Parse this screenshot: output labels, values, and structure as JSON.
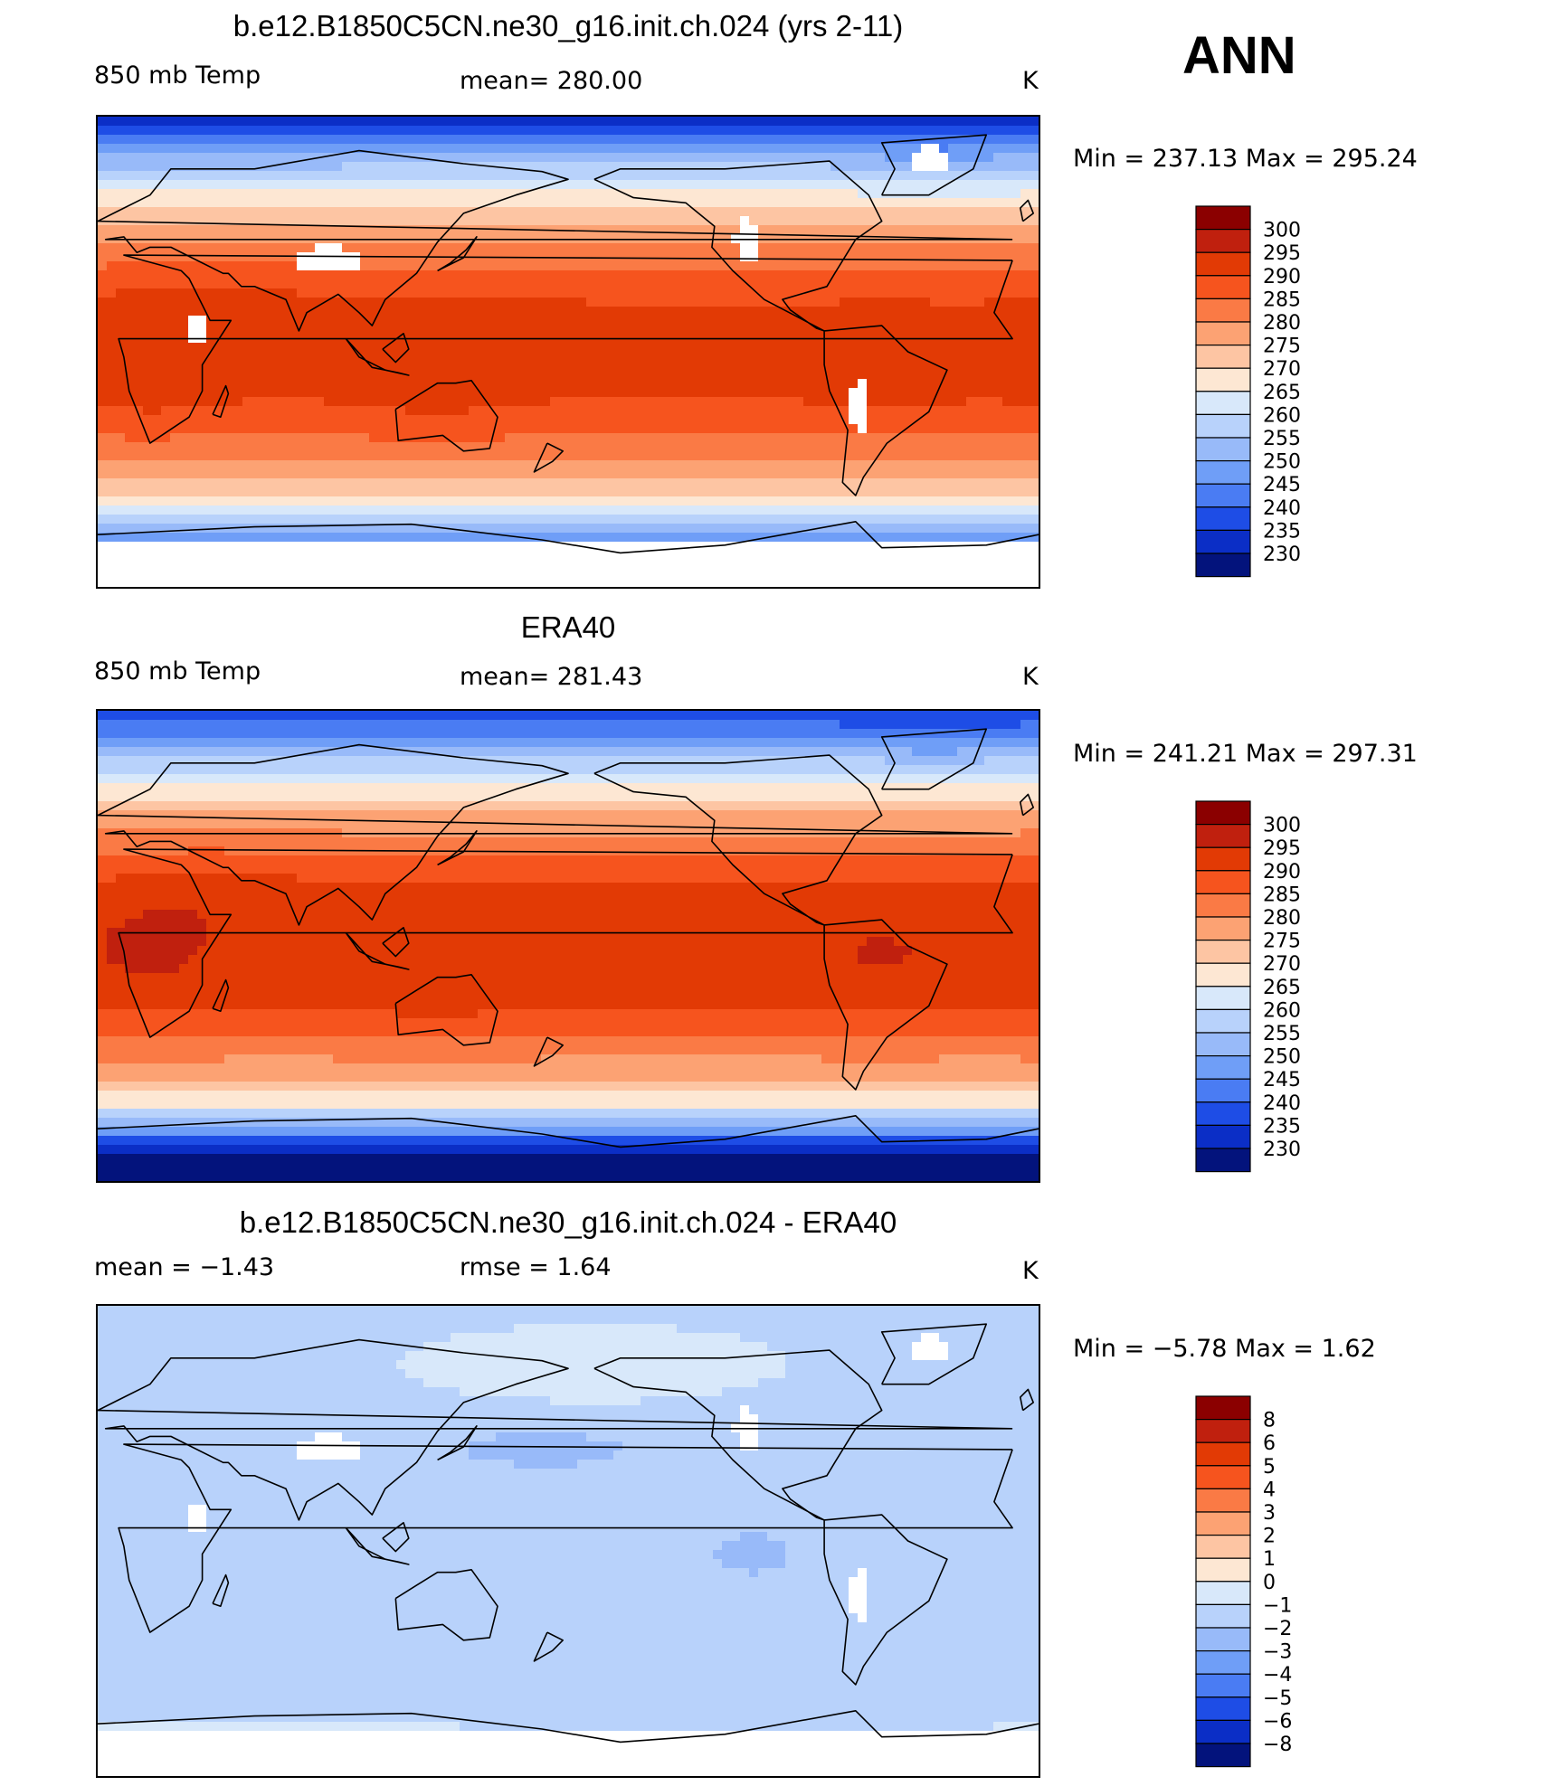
{
  "figure": {
    "season": "ANN",
    "variable_units": "K"
  },
  "chart_data": [
    {
      "type": "heatmap",
      "title": "b.e12.B1850C5CN.ne30_g16.init.ch.024 (yrs 2-11)",
      "left_label": "850 mb Temp",
      "stat_label": "mean=  280.00",
      "units": "K",
      "min_max": "Min  =  237.13  Max  =  295.24",
      "min": 237.13,
      "max": 295.24,
      "mean": 280.0,
      "colorbar": {
        "levels": [
          "300",
          "295",
          "290",
          "285",
          "280",
          "275",
          "270",
          "265",
          "260",
          "255",
          "250",
          "245",
          "240",
          "235",
          "230"
        ],
        "colors": [
          "#8b0000",
          "#c0200e",
          "#e23a05",
          "#f6541e",
          "#fa7a45",
          "#fca273",
          "#fdc5a3",
          "#fde7d3",
          "#d8e8fa",
          "#b8d2fb",
          "#98baf9",
          "#6f9ef7",
          "#4a7cf3",
          "#1e4de6",
          "#0b2ec6",
          "#03137c"
        ]
      },
      "field": "model"
    },
    {
      "type": "heatmap",
      "title": "ERA40",
      "left_label": "850 mb Temp",
      "stat_label": "mean=  281.43",
      "units": "K",
      "min_max": "Min  =  241.21  Max  =  297.31",
      "min": 241.21,
      "max": 297.31,
      "mean": 281.43,
      "colorbar": {
        "levels": [
          "300",
          "295",
          "290",
          "285",
          "280",
          "275",
          "270",
          "265",
          "260",
          "255",
          "250",
          "245",
          "240",
          "235",
          "230"
        ],
        "colors": [
          "#8b0000",
          "#c0200e",
          "#e23a05",
          "#f6541e",
          "#fa7a45",
          "#fca273",
          "#fdc5a3",
          "#fde7d3",
          "#d8e8fa",
          "#b8d2fb",
          "#98baf9",
          "#6f9ef7",
          "#4a7cf3",
          "#1e4de6",
          "#0b2ec6",
          "#03137c"
        ]
      },
      "field": "obs"
    },
    {
      "type": "heatmap",
      "title": "b.e12.B1850C5CN.ne30_g16.init.ch.024 - ERA40",
      "left_label": "mean  =    −1.43",
      "stat_label": "rmse  =     1.64",
      "units": "K",
      "min_max": "Min  =    −5.78  Max  =     1.62",
      "min": -5.78,
      "max": 1.62,
      "mean": -1.43,
      "rmse": 1.64,
      "colorbar": {
        "levels": [
          "8",
          "6",
          "5",
          "4",
          "3",
          "2",
          "1",
          "0",
          "−1",
          "−2",
          "−3",
          "−4",
          "−5",
          "−6",
          "−8"
        ],
        "colors": [
          "#8b0000",
          "#c0200e",
          "#e23a05",
          "#f6541e",
          "#fa7a45",
          "#fca273",
          "#fdc5a3",
          "#fde7d3",
          "#d8e8fa",
          "#b8d2fb",
          "#98baf9",
          "#6f9ef7",
          "#4a7cf3",
          "#1e4de6",
          "#0b2ec6",
          "#03137c"
        ]
      },
      "field": "diff"
    }
  ]
}
